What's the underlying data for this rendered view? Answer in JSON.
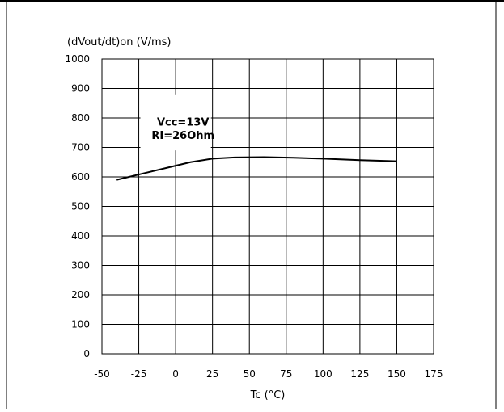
{
  "chart_data": {
    "type": "line",
    "ylabel": "(dVout/dt)on (V/ms)",
    "xlabel": "Tc (°C)",
    "xlim": [
      -50,
      175
    ],
    "ylim": [
      0,
      1000
    ],
    "x_ticks": [
      -50,
      -25,
      0,
      25,
      50,
      75,
      100,
      125,
      150,
      175
    ],
    "y_ticks": [
      0,
      100,
      200,
      300,
      400,
      500,
      600,
      700,
      800,
      900,
      1000
    ],
    "grid": true,
    "annotation": [
      "Vcc=13V",
      "RI=26Ohm"
    ],
    "series": [
      {
        "x": [
          -40,
          -25,
          0,
          10,
          25,
          40,
          60,
          80,
          100,
          125,
          150
        ],
        "y": [
          590,
          608,
          638,
          650,
          662,
          666,
          667,
          665,
          662,
          657,
          653
        ]
      }
    ]
  }
}
